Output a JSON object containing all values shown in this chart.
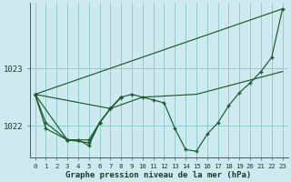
{
  "xlabel": "Graphe pression niveau de la mer (hPa)",
  "bg_color": "#ceeaf0",
  "grid_color": "#8ecfca",
  "line_color": "#1a5c2a",
  "bg_color2": "#b8dde6",
  "ylim": [
    1021.45,
    1024.15
  ],
  "xlim": [
    -0.5,
    23.5
  ],
  "yticks": [
    1022,
    1023
  ],
  "xticks": [
    0,
    1,
    2,
    3,
    4,
    5,
    6,
    7,
    8,
    9,
    10,
    11,
    12,
    13,
    14,
    15,
    16,
    17,
    18,
    19,
    20,
    21,
    22,
    23
  ],
  "series_main": {
    "x": [
      0,
      1,
      2,
      3,
      4,
      5,
      6,
      7,
      8,
      9,
      10,
      11,
      12,
      13,
      14,
      15,
      16,
      17,
      18,
      19,
      20,
      21,
      22,
      23
    ],
    "y": [
      1022.55,
      1021.95,
      null,
      1021.75,
      1021.75,
      1021.75,
      1022.05,
      1022.3,
      1022.5,
      1022.55,
      1022.5,
      1022.45,
      1022.4,
      1021.95,
      1021.58,
      1021.55,
      1021.85,
      1022.05,
      1022.35,
      1022.58,
      1022.75,
      1022.95,
      1023.2,
      1024.05
    ]
  },
  "series_straight": {
    "x": [
      0,
      23
    ],
    "y": [
      1022.55,
      1024.05
    ]
  },
  "series_mid": {
    "x": [
      0,
      7,
      10,
      15,
      19,
      23
    ],
    "y": [
      1022.55,
      1022.3,
      1022.5,
      1022.55,
      1022.75,
      1022.95
    ]
  },
  "series_a": {
    "x": [
      0,
      1,
      3,
      4,
      5,
      6,
      7,
      8
    ],
    "y": [
      1022.55,
      1022.05,
      1021.75,
      1021.75,
      1021.65,
      1022.05,
      1022.3,
      1022.5
    ]
  },
  "series_b": {
    "x": [
      0,
      3,
      5,
      6,
      7,
      8
    ],
    "y": [
      1022.55,
      1021.75,
      1021.7,
      1022.05,
      1022.3,
      1022.5
    ]
  }
}
